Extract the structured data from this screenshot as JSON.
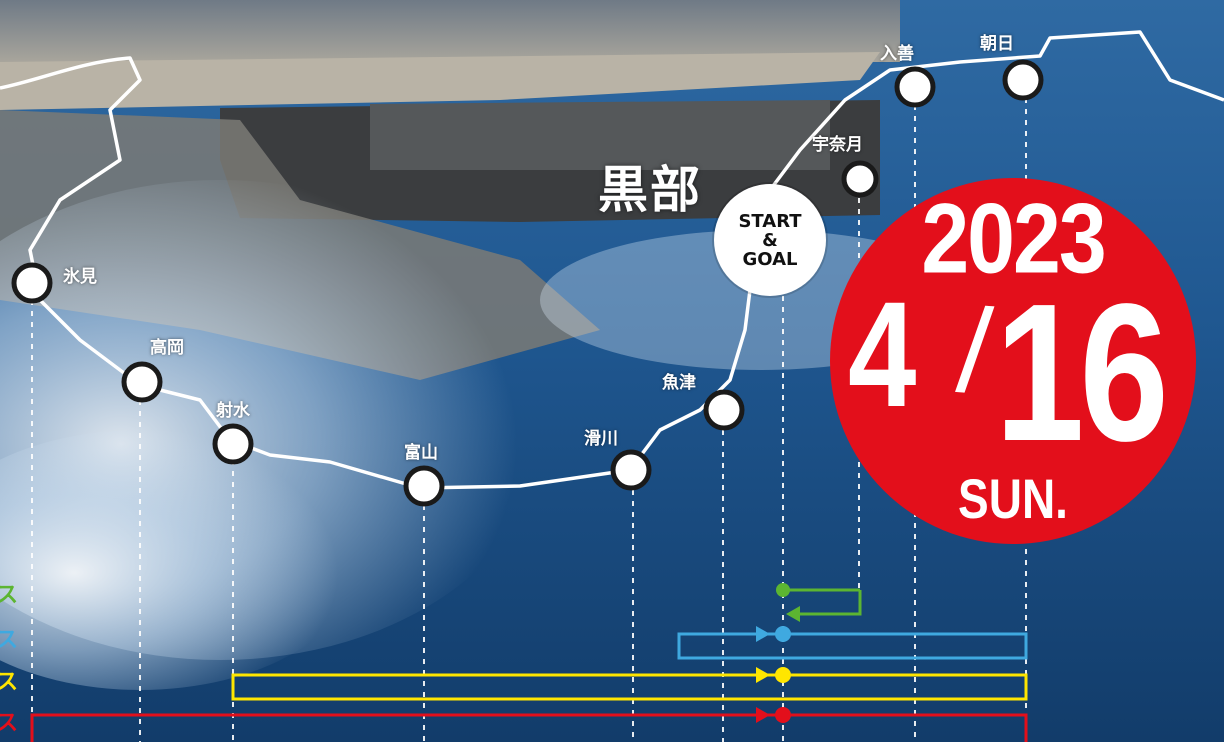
{
  "title": "黒部",
  "start_goal": {
    "line1": "START",
    "line2": "&",
    "line3": "GOAL"
  },
  "event_date": {
    "year": "2023",
    "month": "4",
    "slash": "/",
    "day": "16",
    "weekday": "SUN."
  },
  "checkpoints": [
    {
      "id": "himi",
      "label": "氷見"
    },
    {
      "id": "takaoka",
      "label": "高岡"
    },
    {
      "id": "imizu",
      "label": "射水"
    },
    {
      "id": "toyama",
      "label": "富山"
    },
    {
      "id": "namerikawa",
      "label": "滑川"
    },
    {
      "id": "uozu",
      "label": "魚津"
    },
    {
      "id": "unazuki",
      "label": "宇奈月"
    },
    {
      "id": "nyuzen",
      "label": "入善"
    },
    {
      "id": "asahi",
      "label": "朝日"
    }
  ],
  "courses": [
    {
      "edge_char": "ス",
      "color": "#5cb531"
    },
    {
      "edge_char": "ス",
      "color": "#3fa9e0"
    },
    {
      "edge_char": "ス",
      "color": "#ffe600"
    },
    {
      "edge_char": "ス",
      "color": "#e30f1b"
    }
  ],
  "colors": {
    "badge": "#e30f1b",
    "route": "#ffffff",
    "sea": "#1d4f85"
  }
}
